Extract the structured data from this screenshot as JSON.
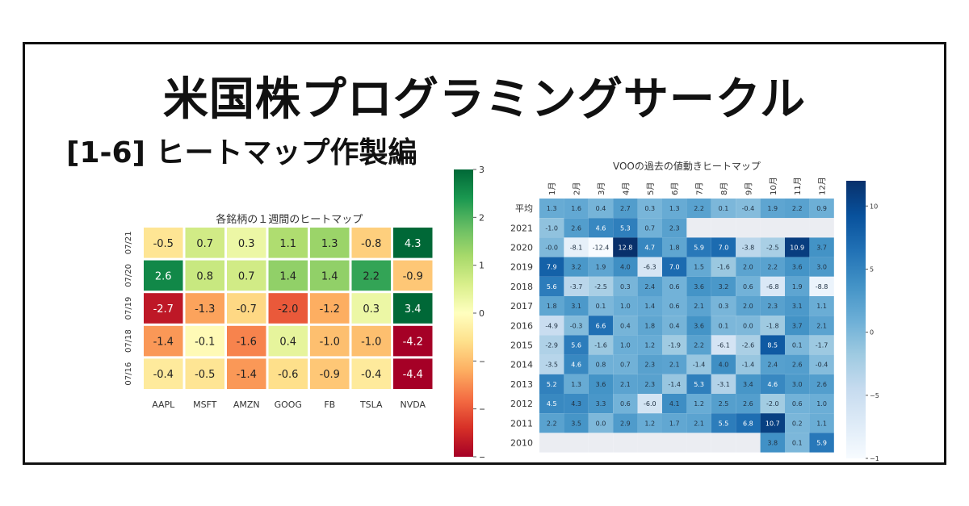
{
  "banner": {
    "title": "米国株プログラミングサークル",
    "subtitle": "[1-6] ヒートマップ作製編"
  },
  "chart_data": [
    {
      "type": "heatmap",
      "title": "各銘柄の１週間のヒートマップ",
      "x_labels": [
        "AAPL",
        "MSFT",
        "AMZN",
        "GOOG",
        "FB",
        "TSLA",
        "NVDA"
      ],
      "y_labels": [
        "07/21",
        "07/20",
        "07/19",
        "07/18",
        "07/16"
      ],
      "values": [
        [
          -0.5,
          0.7,
          0.3,
          1.1,
          1.3,
          -0.8,
          4.3
        ],
        [
          2.6,
          0.8,
          0.7,
          1.4,
          1.4,
          2.2,
          -0.9
        ],
        [
          -2.7,
          -1.3,
          -0.7,
          -2.0,
          -1.2,
          0.3,
          3.4
        ],
        [
          -1.4,
          -0.1,
          -1.6,
          0.4,
          -1.0,
          -1.0,
          -4.2
        ],
        [
          -0.4,
          -0.5,
          -1.4,
          -0.6,
          -0.9,
          -0.4,
          -4.4
        ]
      ],
      "value_labels": [
        [
          "-0.5",
          "0.7",
          "0.3",
          "1.1",
          "1.3",
          "-0.8",
          "4.3"
        ],
        [
          "2.6",
          "0.8",
          "0.7",
          "1.4",
          "1.4",
          "2.2",
          "-0.9"
        ],
        [
          "-2.7",
          "-1.3",
          "-0.7",
          "-2.0",
          "-1.2",
          "0.3",
          "3.4"
        ],
        [
          "-1.4",
          "-0.1",
          "-1.6",
          "0.4",
          "-1.0",
          "-1.0",
          "-4.2"
        ],
        [
          "-0.4",
          "-0.5",
          "-1.4",
          "-0.6",
          "-0.9",
          "-0.4",
          "-4.4"
        ]
      ],
      "colormap": "RdYlGn",
      "vmin": -3,
      "vmax": 3,
      "colorbar_ticks": [
        3,
        2,
        1,
        0,
        -1,
        -2,
        -3
      ],
      "colorbar_tick_labels": [
        "3",
        "2",
        "1",
        "0",
        "−1",
        "−2",
        "−3"
      ]
    },
    {
      "type": "heatmap",
      "title": "VOOの過去の値動きヒートマップ",
      "x_labels": [
        "1月",
        "2月",
        "3月",
        "4月",
        "5月",
        "6月",
        "7月",
        "8月",
        "9月",
        "10月",
        "11月",
        "12月"
      ],
      "y_labels": [
        "平均",
        "2021",
        "2020",
        "2019",
        "2018",
        "2017",
        "2016",
        "2015",
        "2014",
        "2013",
        "2012",
        "2011",
        "2010"
      ],
      "values": [
        [
          1.3,
          1.6,
          0.4,
          2.7,
          0.3,
          1.3,
          2.2,
          0.1,
          -0.4,
          1.9,
          2.2,
          0.9
        ],
        [
          -1.0,
          2.6,
          4.6,
          5.3,
          0.7,
          2.3,
          null,
          null,
          null,
          null,
          null,
          null
        ],
        [
          -0.0,
          -8.1,
          -12.4,
          12.8,
          4.7,
          1.8,
          5.9,
          7.0,
          -3.8,
          -2.5,
          10.9,
          3.7
        ],
        [
          7.9,
          3.2,
          1.9,
          4.0,
          -6.3,
          7.0,
          1.5,
          -1.6,
          2.0,
          2.2,
          3.6,
          3.0
        ],
        [
          5.6,
          -3.7,
          -2.5,
          0.3,
          2.4,
          0.6,
          3.6,
          3.2,
          0.6,
          -6.8,
          1.9,
          -8.8
        ],
        [
          1.8,
          3.1,
          0.1,
          1.0,
          1.4,
          0.6,
          2.1,
          0.3,
          2.0,
          2.3,
          3.1,
          1.1
        ],
        [
          -4.9,
          -0.3,
          6.6,
          0.4,
          1.8,
          0.4,
          3.6,
          0.1,
          0.0,
          -1.8,
          3.7,
          2.1
        ],
        [
          -2.9,
          5.6,
          -1.6,
          1.0,
          1.2,
          -1.9,
          2.2,
          -6.1,
          -2.6,
          8.5,
          0.1,
          -1.7
        ],
        [
          -3.5,
          4.6,
          0.8,
          0.7,
          2.3,
          2.1,
          -1.4,
          4.0,
          -1.4,
          2.4,
          2.6,
          -0.4
        ],
        [
          5.2,
          1.3,
          3.6,
          2.1,
          2.3,
          -1.4,
          5.3,
          -3.1,
          3.4,
          4.6,
          3.0,
          2.6
        ],
        [
          4.5,
          4.3,
          3.3,
          0.6,
          -6.0,
          4.1,
          1.2,
          2.5,
          2.6,
          -2.0,
          0.6,
          1.0
        ],
        [
          2.2,
          3.5,
          0.0,
          2.9,
          1.2,
          1.7,
          2.1,
          5.5,
          6.8,
          10.7,
          0.2,
          1.1
        ],
        [
          null,
          null,
          null,
          null,
          null,
          null,
          null,
          null,
          null,
          3.8,
          0.1,
          5.9
        ]
      ],
      "value_labels": [
        [
          "1.3",
          "1.6",
          "0.4",
          "2.7",
          "0.3",
          "1.3",
          "2.2",
          "0.1",
          "-0.4",
          "1.9",
          "2.2",
          "0.9"
        ],
        [
          "-1.0",
          "2.6",
          "4.6",
          "5.3",
          "0.7",
          "2.3",
          "",
          "",
          "",
          "",
          "",
          ""
        ],
        [
          "-0.0",
          "-8.1",
          "-12.4",
          "12.8",
          "4.7",
          "1.8",
          "5.9",
          "7.0",
          "-3.8",
          "-2.5",
          "10.9",
          "3.7"
        ],
        [
          "7.9",
          "3.2",
          "1.9",
          "4.0",
          "-6.3",
          "7.0",
          "1.5",
          "-1.6",
          "2.0",
          "2.2",
          "3.6",
          "3.0"
        ],
        [
          "5.6",
          "-3.7",
          "-2.5",
          "0.3",
          "2.4",
          "0.6",
          "3.6",
          "3.2",
          "0.6",
          "-6.8",
          "1.9",
          "-8.8"
        ],
        [
          "1.8",
          "3.1",
          "0.1",
          "1.0",
          "1.4",
          "0.6",
          "2.1",
          "0.3",
          "2.0",
          "2.3",
          "3.1",
          "1.1"
        ],
        [
          "-4.9",
          "-0.3",
          "6.6",
          "0.4",
          "1.8",
          "0.4",
          "3.6",
          "0.1",
          "0.0",
          "-1.8",
          "3.7",
          "2.1"
        ],
        [
          "-2.9",
          "5.6",
          "-1.6",
          "1.0",
          "1.2",
          "-1.9",
          "2.2",
          "-6.1",
          "-2.6",
          "8.5",
          "0.1",
          "-1.7"
        ],
        [
          "-3.5",
          "4.6",
          "0.8",
          "0.7",
          "2.3",
          "2.1",
          "-1.4",
          "4.0",
          "-1.4",
          "2.4",
          "2.6",
          "-0.4"
        ],
        [
          "5.2",
          "1.3",
          "3.6",
          "2.1",
          "2.3",
          "-1.4",
          "5.3",
          "-3.1",
          "3.4",
          "4.6",
          "3.0",
          "2.6"
        ],
        [
          "4.5",
          "4.3",
          "3.3",
          "0.6",
          "-6.0",
          "4.1",
          "1.2",
          "2.5",
          "2.6",
          "-2.0",
          "0.6",
          "1.0"
        ],
        [
          "2.2",
          "3.5",
          "0.0",
          "2.9",
          "1.2",
          "1.7",
          "2.1",
          "5.5",
          "6.8",
          "10.7",
          "0.2",
          "1.1"
        ],
        [
          "",
          "",
          "",
          "",
          "",
          "",
          "",
          "",
          "",
          "3.8",
          "0.1",
          "5.9"
        ]
      ],
      "colormap": "Blues",
      "vmin": -10,
      "vmax": 12,
      "colorbar_ticks": [
        10,
        5,
        0,
        -5,
        -10
      ],
      "colorbar_tick_labels": [
        "10",
        "5",
        "0",
        "−5",
        "−10"
      ]
    }
  ]
}
